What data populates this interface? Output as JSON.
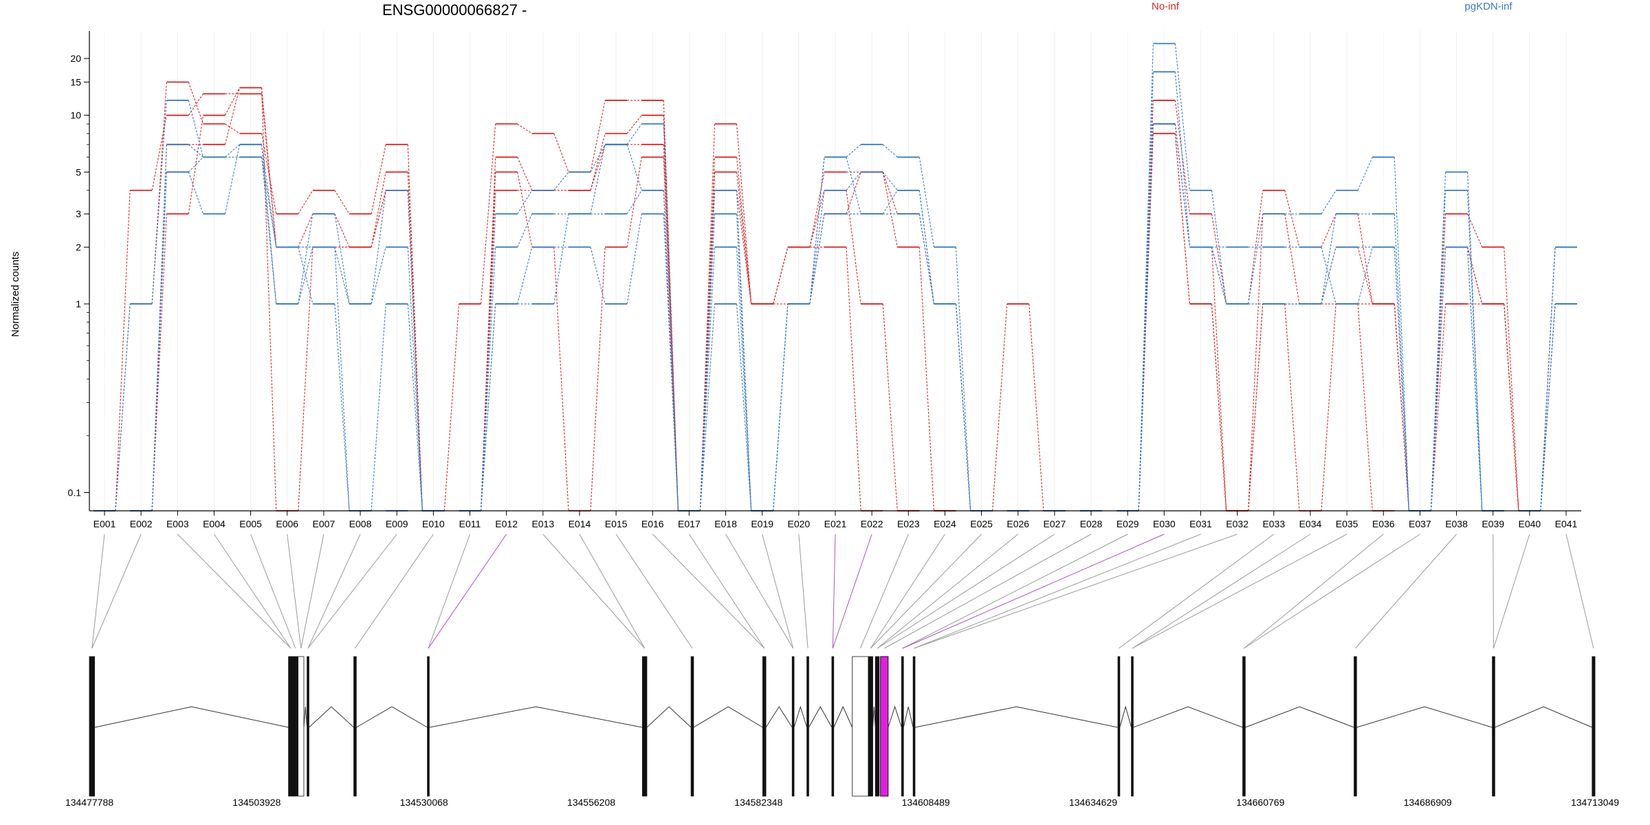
{
  "chart_data": {
    "type": "line",
    "title": "ENSG00000066827 -",
    "ylabel": "Normalized counts",
    "xlabel": "",
    "yscale": "log",
    "ylim": [
      0.08,
      28
    ],
    "yticks": [
      0.1,
      1,
      2,
      3,
      5,
      10,
      15,
      20
    ],
    "ytick_labels": [
      "0.1",
      "1",
      "2",
      "3",
      "5",
      "10",
      "15",
      "20"
    ],
    "grid": "vertical",
    "legend": [
      {
        "name": "No-inf",
        "color": "#d62728"
      },
      {
        "name": "pgKDN-inf",
        "color": "#3a7bbf"
      }
    ],
    "categories": [
      "E001",
      "E002",
      "E003",
      "E004",
      "E005",
      "E006",
      "E007",
      "E008",
      "E009",
      "E010",
      "E011",
      "E012",
      "E013",
      "E014",
      "E015",
      "E016",
      "E017",
      "E018",
      "E019",
      "E020",
      "E021",
      "E022",
      "E023",
      "E024",
      "E025",
      "E026",
      "E027",
      "E028",
      "E029",
      "E030",
      "E031",
      "E032",
      "E033",
      "E034",
      "E035",
      "E036",
      "E037",
      "E038",
      "E039",
      "E040",
      "E041"
    ],
    "series": [
      {
        "group": "No-inf",
        "color": "#d62728",
        "values": [
          0.08,
          1,
          15,
          9,
          8,
          3,
          4,
          3,
          7,
          0.08,
          1,
          9,
          8,
          5,
          12,
          12,
          0.08,
          9,
          1,
          1,
          3,
          5,
          3,
          1,
          0.08,
          1,
          0.08,
          0.08,
          0.08,
          12,
          3,
          1,
          4,
          2,
          3,
          1,
          0.08,
          3,
          2,
          0.08,
          2
        ]
      },
      {
        "group": "No-inf",
        "color": "#d62728",
        "values": [
          0.08,
          4,
          10,
          13,
          13,
          2,
          3,
          2,
          4,
          0.08,
          0.08,
          6,
          4,
          4,
          8,
          10,
          0.08,
          6,
          1,
          2,
          5,
          5,
          2,
          0.08,
          0.08,
          0.08,
          0.08,
          0.08,
          0.08,
          9,
          2,
          0.08,
          1,
          1,
          1,
          1,
          0.08,
          2,
          1,
          0.08,
          1
        ]
      },
      {
        "group": "No-inf",
        "color": "#d62728",
        "values": [
          0.08,
          0.08,
          3,
          10,
          14,
          0.08,
          2,
          2,
          5,
          0.08,
          0.08,
          5,
          2,
          0.08,
          2,
          6,
          0.08,
          5,
          1,
          2,
          4,
          1,
          0.08,
          0.08,
          0.08,
          0.08,
          0.08,
          0.08,
          0.08,
          8,
          1,
          0.08,
          3,
          1,
          2,
          1,
          0.08,
          1,
          1,
          0.08,
          2
        ]
      },
      {
        "group": "No-inf",
        "color": "#d62728",
        "values": [
          0.08,
          0.08,
          7,
          7,
          14,
          2,
          2,
          2,
          4,
          0.08,
          0.08,
          4,
          4,
          4,
          7,
          7,
          0.08,
          4,
          1,
          2,
          2,
          0.08,
          0.08,
          0.08,
          0.08,
          0.08,
          0.08,
          0.08,
          0.08,
          8,
          1,
          0.08,
          1,
          0.08,
          1,
          0.08,
          0.08,
          2,
          1,
          0.08,
          1
        ]
      },
      {
        "group": "pgKDN-inf",
        "color": "#3a7bbf",
        "values": [
          0.08,
          1,
          12,
          6,
          7,
          1,
          3,
          1,
          4,
          0.08,
          0.08,
          3,
          4,
          5,
          7,
          9,
          0.08,
          4,
          0.08,
          1,
          6,
          7,
          6,
          2,
          0.08,
          0.08,
          0.08,
          0.08,
          0.08,
          24,
          4,
          1,
          3,
          3,
          4,
          6,
          0.08,
          5,
          0.08,
          0.08,
          2
        ]
      },
      {
        "group": "pgKDN-inf",
        "color": "#3a7bbf",
        "values": [
          0.08,
          0.08,
          5,
          3,
          7,
          2,
          2,
          1,
          2,
          0.08,
          0.08,
          2,
          3,
          3,
          7,
          4,
          0.08,
          3,
          0.08,
          1,
          4,
          5,
          4,
          1,
          0.08,
          0.08,
          0.08,
          0.08,
          0.08,
          17,
          2,
          1,
          1,
          1,
          3,
          3,
          0.08,
          4,
          0.08,
          0.08,
          1
        ]
      },
      {
        "group": "pgKDN-inf",
        "color": "#3a7bbf",
        "values": [
          0.08,
          0.08,
          7,
          6,
          6,
          2,
          1,
          0.08,
          1,
          0.08,
          0.08,
          1,
          2,
          2,
          1,
          3,
          0.08,
          2,
          0.08,
          1,
          3,
          3,
          4,
          1,
          0.08,
          0.08,
          0.08,
          0.08,
          0.08,
          9,
          2,
          2,
          2,
          2,
          1,
          2,
          0.08,
          2,
          0.08,
          0.08,
          2
        ]
      },
      {
        "group": "pgKDN-inf",
        "color": "#3a7bbf",
        "values": [
          0.08,
          0.08,
          5,
          6,
          6,
          1,
          2,
          0.08,
          0.08,
          0.08,
          0.08,
          1,
          1,
          3,
          3,
          4,
          0.08,
          1,
          0.08,
          1,
          6,
          3,
          3,
          1,
          0.08,
          0.08,
          0.08,
          0.08,
          0.08,
          9,
          2,
          1,
          1,
          1,
          2,
          2,
          0.08,
          2,
          0.08,
          0.08,
          1
        ]
      }
    ],
    "genomic_axis": {
      "tick_labels": [
        "134477788",
        "134503928",
        "134530068",
        "134556208",
        "134582348",
        "134608489",
        "134634629",
        "134660769",
        "134686909",
        "134713049"
      ],
      "range": [
        134477788,
        134713049
      ],
      "exons": [
        {
          "start": 134477788,
          "end": 134478600
        },
        {
          "start": 134508900,
          "end": 134509600
        },
        {
          "start": 134509600,
          "end": 134510400
        },
        {
          "start": 134510400,
          "end": 134511300
        },
        {
          "start": 134511800,
          "end": 134512100
        },
        {
          "start": 134519100,
          "end": 134519500
        },
        {
          "start": 134530600,
          "end": 134530900
        },
        {
          "start": 134564200,
          "end": 134564900
        },
        {
          "start": 134571800,
          "end": 134572200
        },
        {
          "start": 134583000,
          "end": 134583500
        },
        {
          "start": 134587600,
          "end": 134587900
        },
        {
          "start": 134589900,
          "end": 134590200
        },
        {
          "start": 134593800,
          "end": 134594100
        },
        {
          "start": 134597000,
          "end": 134599500
        },
        {
          "start": 134599500,
          "end": 134600200
        },
        {
          "start": 134600600,
          "end": 134601200
        },
        {
          "start": 134601400,
          "end": 134602600
        },
        {
          "start": 134604700,
          "end": 134605000
        },
        {
          "start": 134606500,
          "end": 134606800
        },
        {
          "start": 134638500,
          "end": 134638800
        },
        {
          "start": 134640600,
          "end": 134640900
        },
        {
          "start": 134658000,
          "end": 134658400
        },
        {
          "start": 134675400,
          "end": 134675800
        },
        {
          "start": 134697000,
          "end": 134697400
        },
        {
          "start": 134712600,
          "end": 134713049
        }
      ],
      "highlight_color": "#e020e0"
    }
  }
}
